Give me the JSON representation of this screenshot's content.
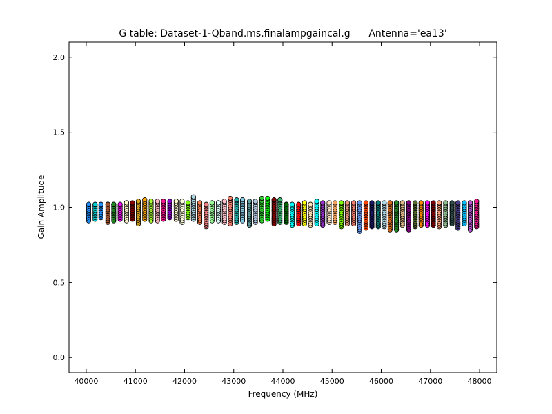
{
  "chart_data": {
    "type": "scatter",
    "title": "G table: Dataset-1-Qband.ms.finalampgaincal.g      Antenna='ea13'",
    "xlabel": "Frequency (MHz)",
    "ylabel": "Gain Amplitude",
    "xlim": [
      39650,
      48350
    ],
    "ylim": [
      -0.1,
      2.1
    ],
    "xticks": [
      40000,
      41000,
      42000,
      43000,
      44000,
      45000,
      46000,
      47000,
      48000
    ],
    "yticks": [
      0.0,
      0.5,
      1.0,
      1.5,
      2.0
    ],
    "xtick_labels": [
      "40000",
      "41000",
      "42000",
      "43000",
      "44000",
      "45000",
      "46000",
      "47000",
      "48000"
    ],
    "ytick_labels": [
      "0.0",
      "0.5",
      "1.0",
      "1.5",
      "2.0"
    ],
    "grid": false,
    "marker": "circle",
    "series": [
      {
        "x": 40050,
        "min": 0.91,
        "max": 1.02,
        "color": "#1e90ff"
      },
      {
        "x": 40180,
        "min": 0.92,
        "max": 1.02,
        "color": "#00ced1"
      },
      {
        "x": 40300,
        "min": 0.93,
        "max": 1.02,
        "color": "#1e90ff"
      },
      {
        "x": 40440,
        "min": 0.9,
        "max": 1.02,
        "color": "#a0522d"
      },
      {
        "x": 40560,
        "min": 0.91,
        "max": 1.02,
        "color": "#228b22"
      },
      {
        "x": 40690,
        "min": 0.92,
        "max": 1.02,
        "color": "#ff00ff"
      },
      {
        "x": 40820,
        "min": 0.91,
        "max": 1.03,
        "color": "#fffacd"
      },
      {
        "x": 40940,
        "min": 0.92,
        "max": 1.03,
        "color": "#8b0000"
      },
      {
        "x": 41060,
        "min": 0.89,
        "max": 1.04,
        "color": "#daa520"
      },
      {
        "x": 41190,
        "min": 0.92,
        "max": 1.05,
        "color": "#ffa500"
      },
      {
        "x": 41320,
        "min": 0.91,
        "max": 1.04,
        "color": "#adff2f"
      },
      {
        "x": 41450,
        "min": 0.91,
        "max": 1.04,
        "color": "#ffb6c1"
      },
      {
        "x": 41570,
        "min": 0.92,
        "max": 1.04,
        "color": "#ff1493"
      },
      {
        "x": 41700,
        "min": 0.93,
        "max": 1.04,
        "color": "#9400d3"
      },
      {
        "x": 41830,
        "min": 0.92,
        "max": 1.04,
        "color": "#fffacd"
      },
      {
        "x": 41950,
        "min": 0.9,
        "max": 1.04,
        "color": "#ffffe0"
      },
      {
        "x": 42070,
        "min": 0.93,
        "max": 1.03,
        "color": "#7fff00"
      },
      {
        "x": 42180,
        "min": 0.92,
        "max": 1.07,
        "color": "#add8e6"
      },
      {
        "x": 42310,
        "min": 0.9,
        "max": 1.03,
        "color": "#ff7f50"
      },
      {
        "x": 42440,
        "min": 0.87,
        "max": 1.02,
        "color": "#f08080"
      },
      {
        "x": 42560,
        "min": 0.91,
        "max": 1.03,
        "color": "#98fb98"
      },
      {
        "x": 42690,
        "min": 0.91,
        "max": 1.03,
        "color": "#e0ffff"
      },
      {
        "x": 42810,
        "min": 0.9,
        "max": 1.04,
        "color": "#ffc0cb"
      },
      {
        "x": 42930,
        "min": 0.89,
        "max": 1.06,
        "color": "#fa8072"
      },
      {
        "x": 43060,
        "min": 0.9,
        "max": 1.05,
        "color": "#20b2aa"
      },
      {
        "x": 43180,
        "min": 0.91,
        "max": 1.05,
        "color": "#87ceeb"
      },
      {
        "x": 43320,
        "min": 0.88,
        "max": 1.04,
        "color": "#5f9ea0"
      },
      {
        "x": 43440,
        "min": 0.9,
        "max": 1.04,
        "color": "#b0c4de"
      },
      {
        "x": 43570,
        "min": 0.91,
        "max": 1.06,
        "color": "#32cd32"
      },
      {
        "x": 43690,
        "min": 0.92,
        "max": 1.06,
        "color": "#00ff00"
      },
      {
        "x": 43820,
        "min": 0.89,
        "max": 1.05,
        "color": "#8b0000"
      },
      {
        "x": 43940,
        "min": 0.9,
        "max": 1.05,
        "color": "#3cb371"
      },
      {
        "x": 44070,
        "min": 0.9,
        "max": 1.02,
        "color": "#006400"
      },
      {
        "x": 44190,
        "min": 0.88,
        "max": 1.02,
        "color": "#00ffff"
      },
      {
        "x": 44320,
        "min": 0.89,
        "max": 1.02,
        "color": "#ff0000"
      },
      {
        "x": 44440,
        "min": 0.89,
        "max": 1.03,
        "color": "#ffff00"
      },
      {
        "x": 44560,
        "min": 0.88,
        "max": 1.02,
        "color": "#ffe4b5"
      },
      {
        "x": 44690,
        "min": 0.89,
        "max": 1.04,
        "color": "#00ffff"
      },
      {
        "x": 44810,
        "min": 0.88,
        "max": 1.03,
        "color": "#9932cc"
      },
      {
        "x": 44940,
        "min": 0.9,
        "max": 1.03,
        "color": "#ffe4c4"
      },
      {
        "x": 45060,
        "min": 0.9,
        "max": 1.03,
        "color": "#f4a460"
      },
      {
        "x": 45190,
        "min": 0.87,
        "max": 1.03,
        "color": "#7fff00"
      },
      {
        "x": 45310,
        "min": 0.89,
        "max": 1.03,
        "color": "#e9967a"
      },
      {
        "x": 45440,
        "min": 0.89,
        "max": 1.03,
        "color": "#fa8072"
      },
      {
        "x": 45560,
        "min": 0.84,
        "max": 1.03,
        "color": "#6495ed"
      },
      {
        "x": 45690,
        "min": 0.86,
        "max": 1.03,
        "color": "#ff4500"
      },
      {
        "x": 45810,
        "min": 0.87,
        "max": 1.03,
        "color": "#191970"
      },
      {
        "x": 45940,
        "min": 0.87,
        "max": 1.03,
        "color": "#008080"
      },
      {
        "x": 46060,
        "min": 0.87,
        "max": 1.03,
        "color": "#add8e6"
      },
      {
        "x": 46180,
        "min": 0.85,
        "max": 1.03,
        "color": "#d2691e"
      },
      {
        "x": 46310,
        "min": 0.85,
        "max": 1.03,
        "color": "#228b22"
      },
      {
        "x": 46430,
        "min": 0.88,
        "max": 1.03,
        "color": "#deb887"
      },
      {
        "x": 46560,
        "min": 0.85,
        "max": 1.03,
        "color": "#800080"
      },
      {
        "x": 46690,
        "min": 0.87,
        "max": 1.03,
        "color": "#556b2f"
      },
      {
        "x": 46810,
        "min": 0.88,
        "max": 1.03,
        "color": "#ff8c00"
      },
      {
        "x": 46940,
        "min": 0.88,
        "max": 1.03,
        "color": "#ff00ff"
      },
      {
        "x": 47060,
        "min": 0.88,
        "max": 1.03,
        "color": "#800000"
      },
      {
        "x": 47180,
        "min": 0.87,
        "max": 1.03,
        "color": "#ffa07a"
      },
      {
        "x": 47310,
        "min": 0.88,
        "max": 1.03,
        "color": "#8fbc8f"
      },
      {
        "x": 47440,
        "min": 0.89,
        "max": 1.03,
        "color": "#2f4f4f"
      },
      {
        "x": 47560,
        "min": 0.86,
        "max": 1.03,
        "color": "#483d8b"
      },
      {
        "x": 47690,
        "min": 0.89,
        "max": 1.03,
        "color": "#00bfff"
      },
      {
        "x": 47810,
        "min": 0.85,
        "max": 1.03,
        "color": "#ba55d3"
      },
      {
        "x": 47940,
        "min": 0.87,
        "max": 1.04,
        "color": "#ff1493"
      }
    ]
  }
}
